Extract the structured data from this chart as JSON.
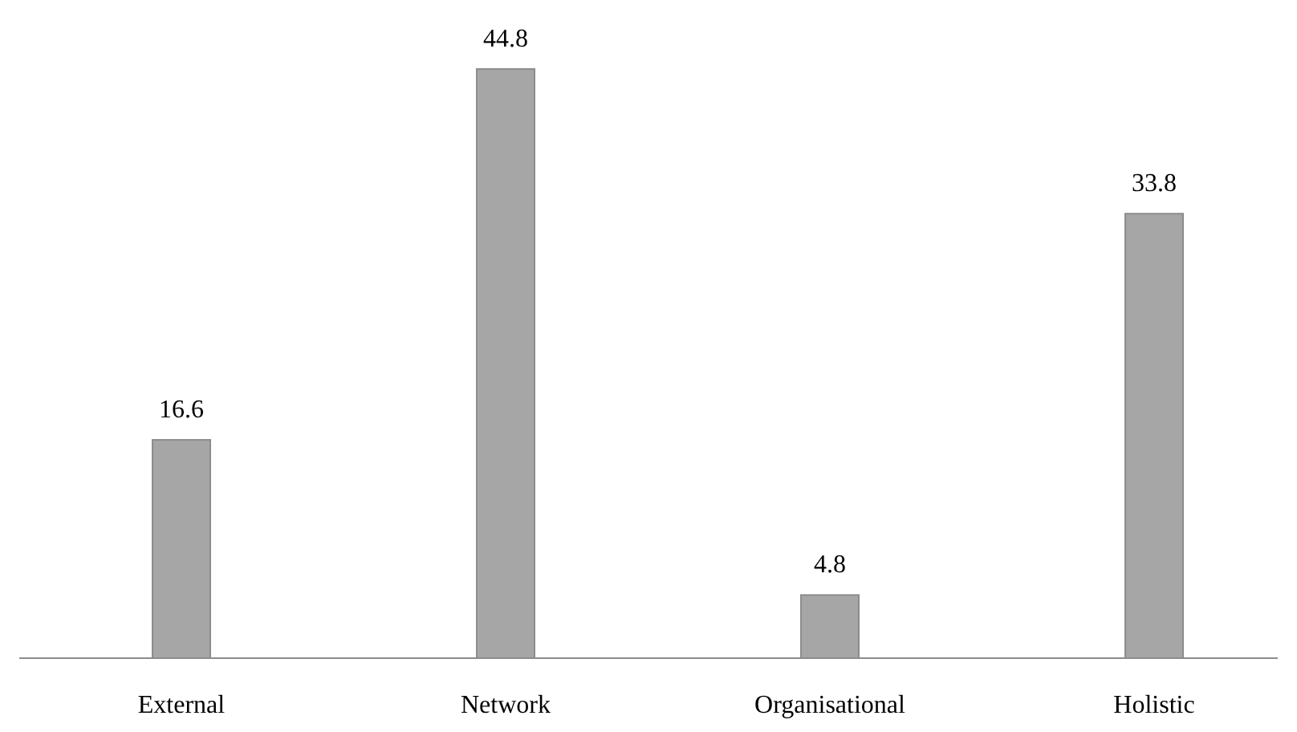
{
  "chart_data": {
    "type": "bar",
    "categories": [
      "External",
      "Network",
      "Organisational",
      "Holistic"
    ],
    "values": [
      16.6,
      44.8,
      4.8,
      33.8
    ],
    "color": "#a6a6a6",
    "data_labels": true
  }
}
